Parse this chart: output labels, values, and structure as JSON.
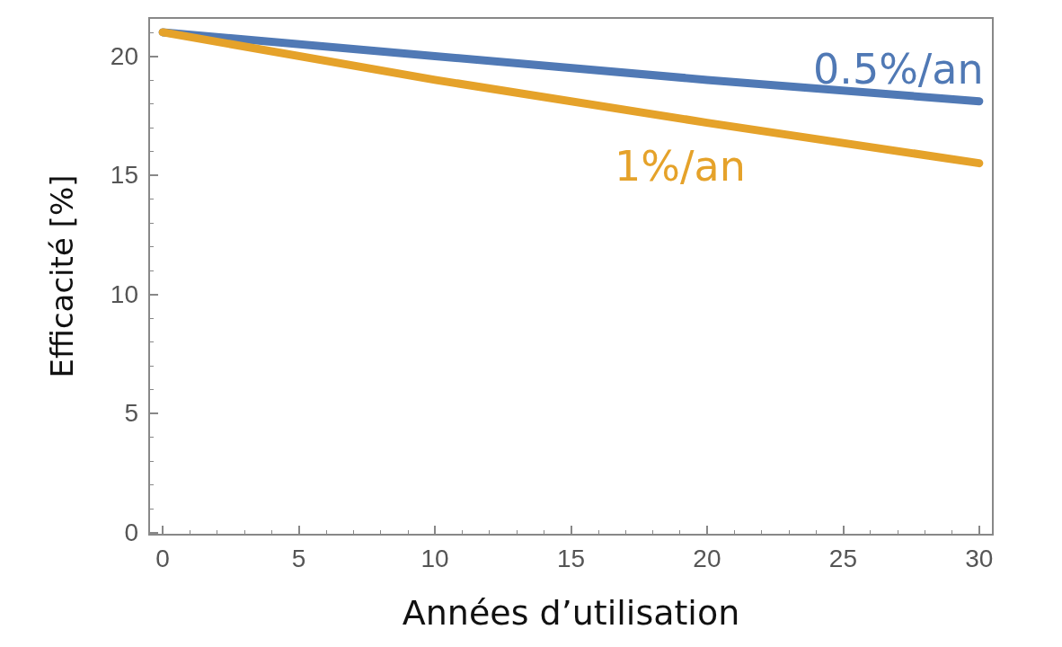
{
  "chart_data": {
    "type": "line",
    "xlabel": "Années d’utilisation",
    "ylabel": "Efficacité [%]",
    "x": [
      0,
      10,
      20,
      30
    ],
    "series": [
      {
        "name": "0.5%/an",
        "color": "#5079b5",
        "values": [
          21,
          20,
          19,
          18.1
        ]
      },
      {
        "name": "1%/an",
        "color": "#e5a22a",
        "values": [
          21,
          19,
          17.2,
          15.5
        ]
      }
    ],
    "xlim": [
      -0.5,
      30.5
    ],
    "xticks": [
      0,
      5,
      10,
      15,
      20,
      25,
      30
    ],
    "ylim": [
      -0.1,
      21.6
    ],
    "yticks": [
      0,
      5,
      10,
      15,
      20
    ],
    "grid": false,
    "legend": false,
    "marker": "none",
    "line_style": "solid"
  }
}
